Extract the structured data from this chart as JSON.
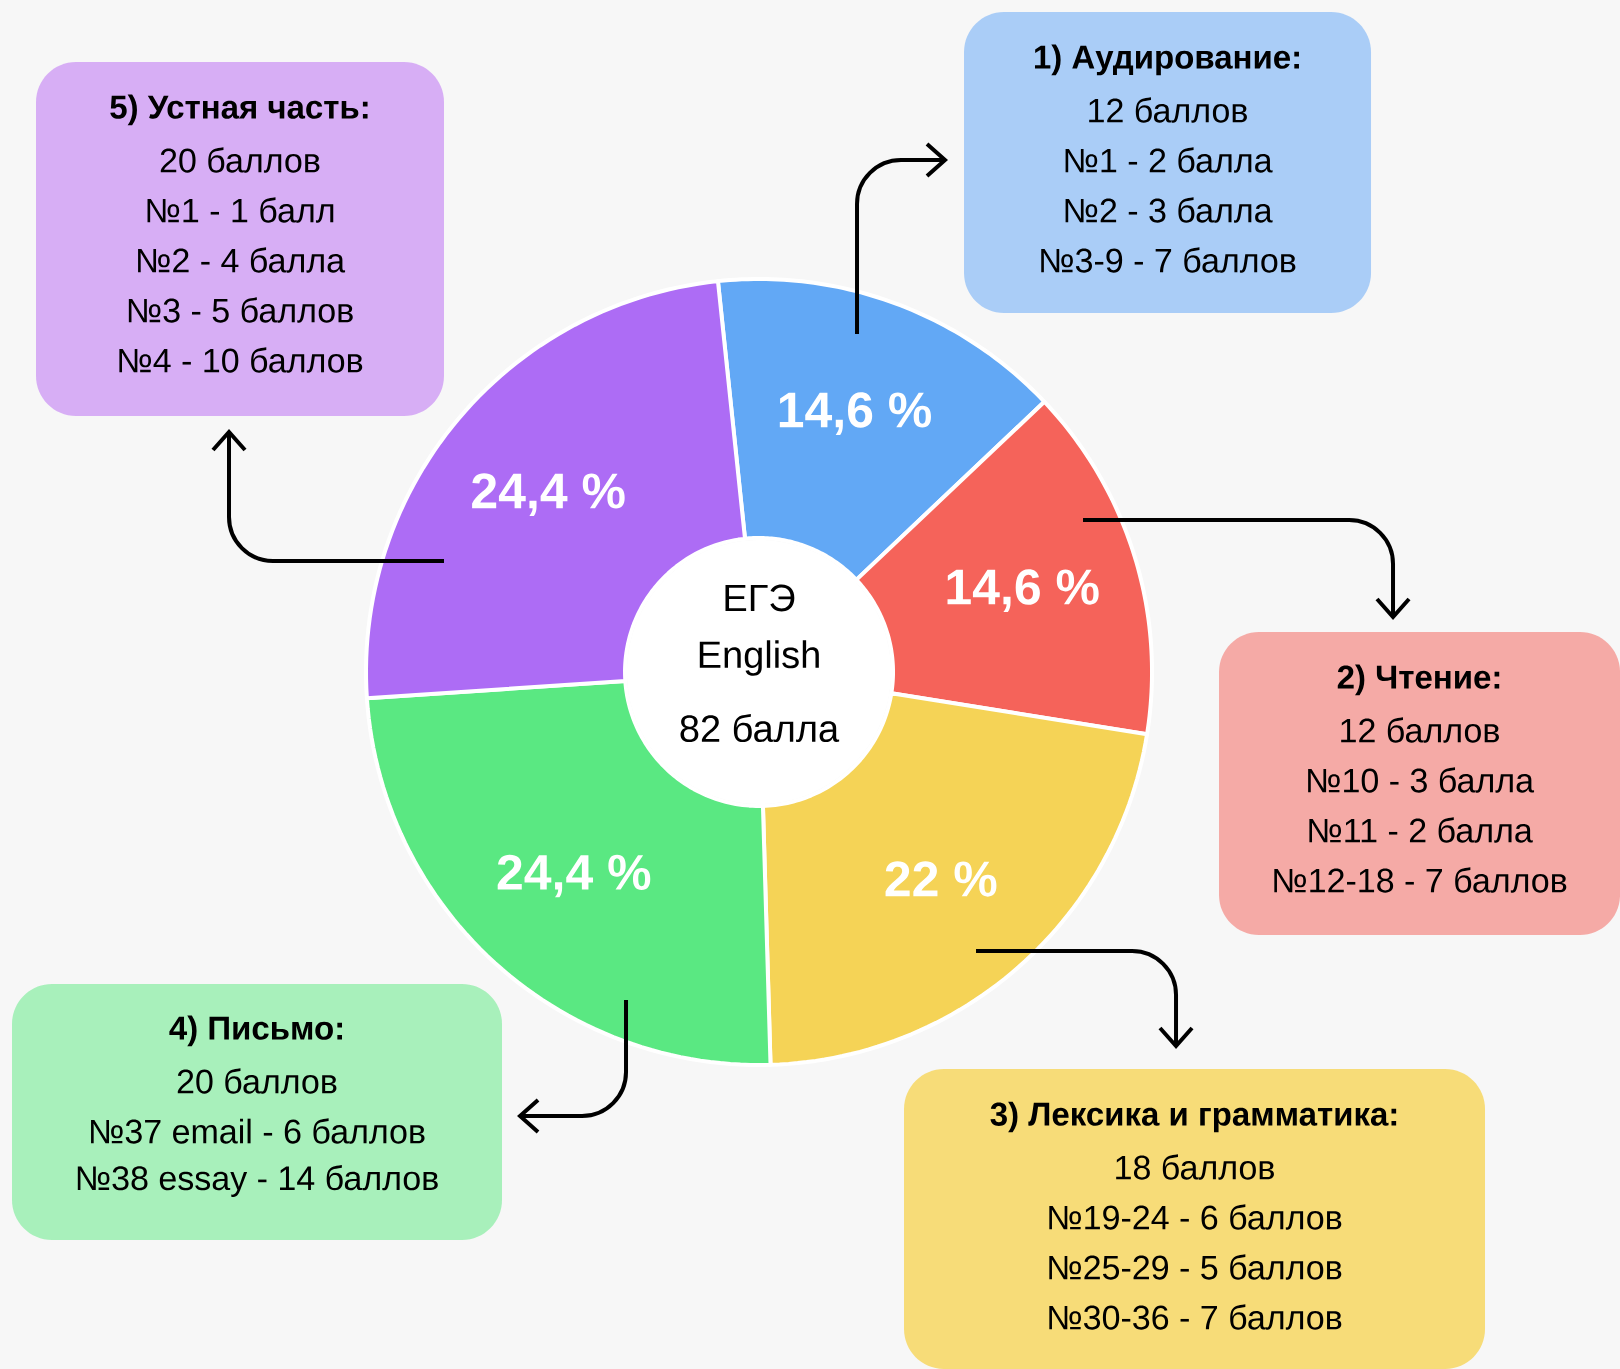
{
  "chart_data": {
    "type": "donut",
    "categories": [
      null,
      null,
      null,
      null,
      null
    ],
    "values": [
      14.6,
      14.6,
      22,
      24.4,
      24.4
    ],
    "colors": [
      "#62a8f5",
      "#f5635a",
      "#f5d356",
      "#5ae882",
      "#ad6cf5"
    ],
    "value_labels": [
      "14,6 %",
      "14,6 %",
      "22 %",
      "24,4 %",
      "24,4 %"
    ],
    "annotations": [
      "ЕГЭ",
      "English",
      "82 балла",
      "1) Аудирование:",
      "12 баллов",
      "№1 - 2 балла",
      "№2 - 3 балла",
      "№3-9 - 7 баллов",
      "2) Чтение:",
      "12 баллов",
      "№10 - 3 балла",
      "№11 - 2 балла",
      "№12-18 - 7 баллов",
      "3) Лексика и грамматика:",
      "18 баллов",
      "№19-24 - 6 баллов",
      "№25-29 - 5 баллов",
      "№30-36 - 7 баллов",
      "4) Письмо:",
      "20 баллов",
      "№37 email - 6 баллов",
      "№38 essay - 14 баллов",
      "5) Устная часть:",
      "20 баллов",
      "№1 - 1 балл",
      "№2 - 4 балла",
      "№3 - 5 баллов",
      "№4 - 10 баллов"
    ]
  }
}
